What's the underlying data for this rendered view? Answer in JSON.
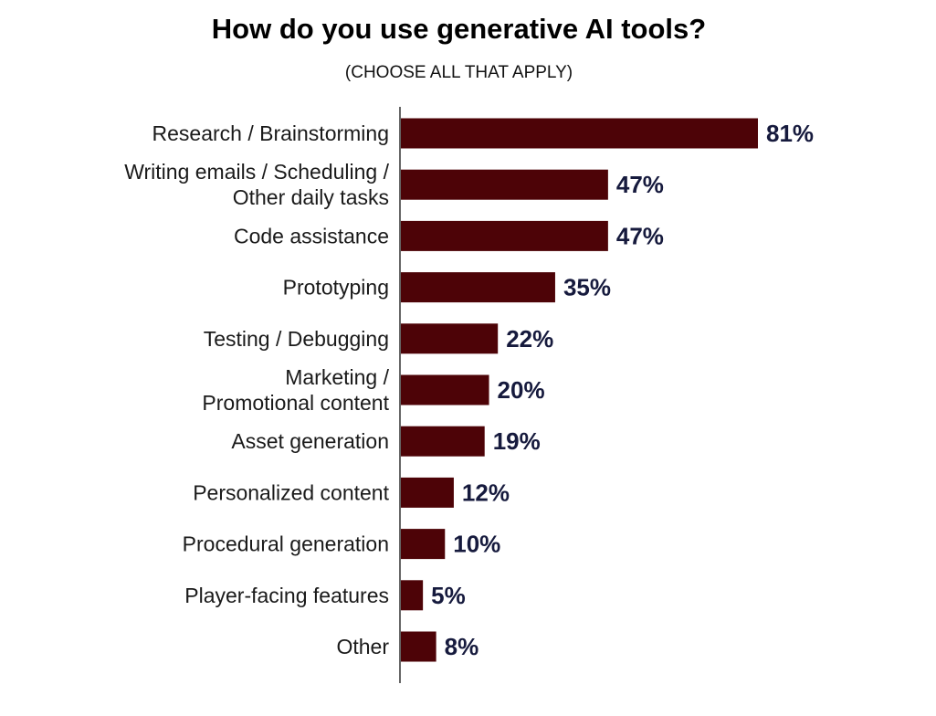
{
  "title": "How do you use generative AI tools?",
  "subtitle": "(CHOOSE ALL THAT APPLY)",
  "colors": {
    "bar": "#4d0307",
    "value_label": "#161a3d",
    "axis": "#333333"
  },
  "chart_data": {
    "type": "bar",
    "orientation": "horizontal",
    "title": "How do you use generative AI tools?",
    "subtitle": "(CHOOSE ALL THAT APPLY)",
    "xlabel": "",
    "ylabel": "",
    "xlim": [
      0,
      100
    ],
    "grid": false,
    "legend": "none",
    "categories": [
      [
        "Research / Brainstorming"
      ],
      [
        "Writing emails / Scheduling /",
        "Other daily tasks"
      ],
      [
        "Code assistance"
      ],
      [
        "Prototyping"
      ],
      [
        "Testing / Debugging"
      ],
      [
        "Marketing /",
        "Promotional content"
      ],
      [
        "Asset generation"
      ],
      [
        "Personalized content"
      ],
      [
        "Procedural generation"
      ],
      [
        "Player-facing features"
      ],
      [
        "Other"
      ]
    ],
    "values": [
      81,
      47,
      47,
      35,
      22,
      20,
      19,
      12,
      10,
      5,
      8
    ],
    "value_labels": [
      "81%",
      "47%",
      "47%",
      "35%",
      "22%",
      "20%",
      "19%",
      "12%",
      "10%",
      "5%",
      "8%"
    ]
  }
}
